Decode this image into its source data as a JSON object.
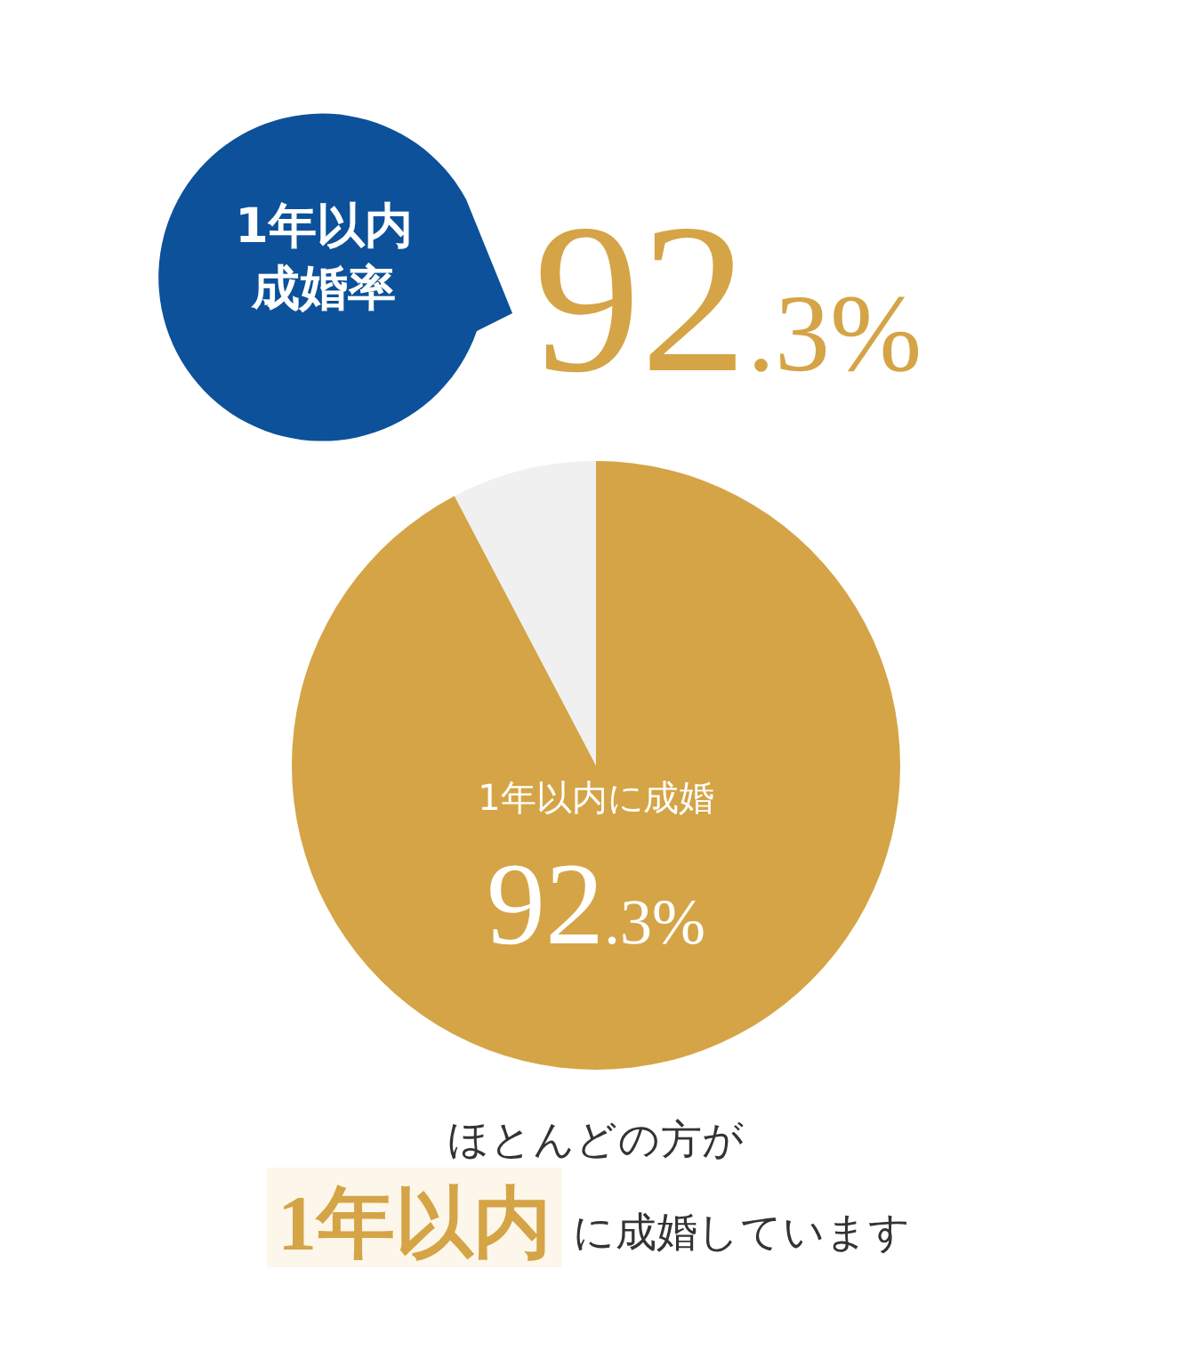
{
  "chart_data": {
    "type": "pie",
    "title": "1年以内成婚率",
    "categories": [
      "1年以内に成婚",
      null
    ],
    "values": [
      92.3,
      7.7
    ],
    "colors": [
      "#d5a446",
      "#f0f0f0"
    ],
    "value_labels": [
      "92.3%",
      null
    ],
    "annotations": [
      "92.3%",
      "ほとんどの方が",
      "1年以内",
      "に成婚しています"
    ]
  }
}
